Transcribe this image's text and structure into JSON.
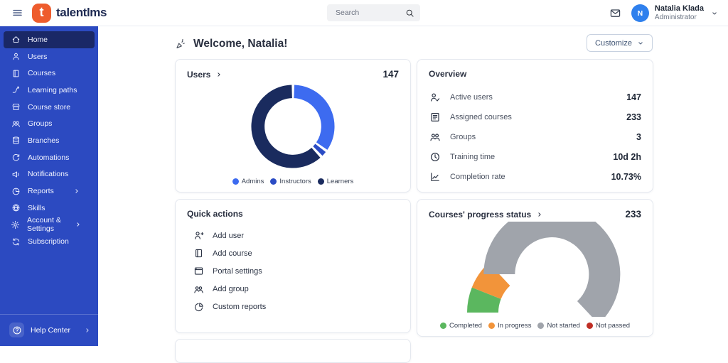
{
  "header": {
    "brand": "talentlms",
    "logo_letter": "t",
    "search_placeholder": "Search",
    "user": {
      "name": "Natalia Klada",
      "role": "Administrator",
      "avatar_initial": "N"
    }
  },
  "sidebar": {
    "items": [
      {
        "label": "Home",
        "icon": "home-icon",
        "active": true,
        "chevron": false
      },
      {
        "label": "Users",
        "icon": "user-icon",
        "active": false,
        "chevron": false
      },
      {
        "label": "Courses",
        "icon": "book-icon",
        "active": false,
        "chevron": false
      },
      {
        "label": "Learning paths",
        "icon": "learning-paths-icon",
        "active": false,
        "chevron": false
      },
      {
        "label": "Course store",
        "icon": "store-icon",
        "active": false,
        "chevron": false
      },
      {
        "label": "Groups",
        "icon": "groups-icon",
        "active": false,
        "chevron": false
      },
      {
        "label": "Branches",
        "icon": "branches-icon",
        "active": false,
        "chevron": false
      },
      {
        "label": "Automations",
        "icon": "automations-icon",
        "active": false,
        "chevron": false
      },
      {
        "label": "Notifications",
        "icon": "megaphone-icon",
        "active": false,
        "chevron": false
      },
      {
        "label": "Reports",
        "icon": "pie-chart-icon",
        "active": false,
        "chevron": true
      },
      {
        "label": "Skills",
        "icon": "globe-icon",
        "active": false,
        "chevron": false
      },
      {
        "label": "Account & Settings",
        "icon": "gear-icon",
        "active": false,
        "chevron": true
      },
      {
        "label": "Subscription",
        "icon": "subscription-icon",
        "active": false,
        "chevron": false
      }
    ],
    "help": {
      "label": "Help Center",
      "icon": "help-icon",
      "chevron": true
    }
  },
  "main": {
    "welcome": "Welcome, Natalia!",
    "customize_label": "Customize",
    "cards": {
      "users": {
        "title": "Users",
        "value": "147"
      },
      "overview": {
        "title": "Overview",
        "rows": [
          {
            "icon": "active-users-icon",
            "label": "Active users",
            "value": "147"
          },
          {
            "icon": "assigned-courses-icon",
            "label": "Assigned courses",
            "value": "233"
          },
          {
            "icon": "groups-icon",
            "label": "Groups",
            "value": "3"
          },
          {
            "icon": "clock-icon",
            "label": "Training time",
            "value": "10d 2h"
          },
          {
            "icon": "line-chart-icon",
            "label": "Completion rate",
            "value": "10.73%"
          }
        ]
      },
      "quick_actions": {
        "title": "Quick actions",
        "items": [
          {
            "icon": "add-user-icon",
            "label": "Add user"
          },
          {
            "icon": "book-icon",
            "label": "Add course"
          },
          {
            "icon": "portal-settings-icon",
            "label": "Portal settings"
          },
          {
            "icon": "groups-icon",
            "label": "Add group"
          },
          {
            "icon": "custom-reports-icon",
            "label": "Custom reports"
          }
        ]
      },
      "progress": {
        "title": "Courses' progress status",
        "value": "233"
      }
    }
  },
  "chart_data": [
    {
      "type": "pie",
      "variant": "donut",
      "title": "Users",
      "total": 147,
      "legend_position": "bottom",
      "series": [
        {
          "name": "Admins",
          "percent": 35,
          "color": "#3d6bf0"
        },
        {
          "name": "Instructors",
          "percent": 3,
          "color": "#2b4cc4"
        },
        {
          "name": "Learners",
          "percent": 62,
          "color": "#1a2b5e"
        }
      ]
    },
    {
      "type": "pie",
      "variant": "half-donut-gauge",
      "title": "Courses' progress status",
      "total": 233,
      "legend_position": "bottom",
      "series": [
        {
          "name": "Completed",
          "percent": 12,
          "color": "#5bb75f"
        },
        {
          "name": "In progress",
          "percent": 14,
          "color": "#f2943a"
        },
        {
          "name": "Not started",
          "percent": 74,
          "color": "#a0a4ab"
        },
        {
          "name": "Not passed",
          "percent": 0,
          "color": "#bf2e25"
        }
      ]
    }
  ],
  "colors": {
    "brand_orange": "#ee5c2d",
    "sidebar_blue": "#2c4ac1",
    "sidebar_active": "#1a2866",
    "avatar_blue": "#2f80ed",
    "heading_navy": "#1e2a52"
  }
}
